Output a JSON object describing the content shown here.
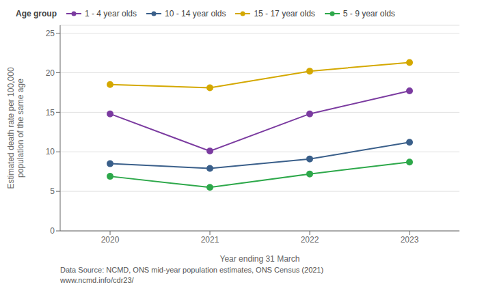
{
  "chart_data": {
    "type": "line",
    "x": [
      2020,
      2021,
      2022,
      2023
    ],
    "series": [
      {
        "name": "1 - 4 year olds",
        "values": [
          14.8,
          10.1,
          14.8,
          17.7
        ],
        "color": "#7B3BA0",
        "marker": "circle"
      },
      {
        "name": "5 - 9 year olds",
        "values": [
          6.9,
          5.5,
          7.2,
          8.7
        ],
        "color": "#2DA84A",
        "marker": "circle"
      },
      {
        "name": "10 - 14 year olds",
        "values": [
          8.5,
          7.9,
          9.1,
          11.2
        ],
        "color": "#3A5F8A",
        "marker": "circle"
      },
      {
        "name": "15 - 17 year olds",
        "values": [
          18.5,
          18.1,
          20.2,
          21.3
        ],
        "color": "#D4A800",
        "marker": "circle"
      }
    ],
    "xlabel": "Year ending 31 March",
    "ylabel": "Estimated death rate per 100,000\npopulation of the same age",
    "xlim": [
      2019.5,
      2023.5
    ],
    "xticks": [
      2020,
      2021,
      2022,
      2023
    ],
    "ylim": [
      0,
      26
    ],
    "yticks": [
      0,
      5,
      10,
      15,
      20,
      25
    ],
    "grid": true,
    "legend": "top",
    "legend_title": "Age group",
    "annotations": [
      "Data Source: NCMD, ONS mid-year population estimates, ONS Census (2021)",
      "www.ncmd.info/cdr23/"
    ]
  }
}
